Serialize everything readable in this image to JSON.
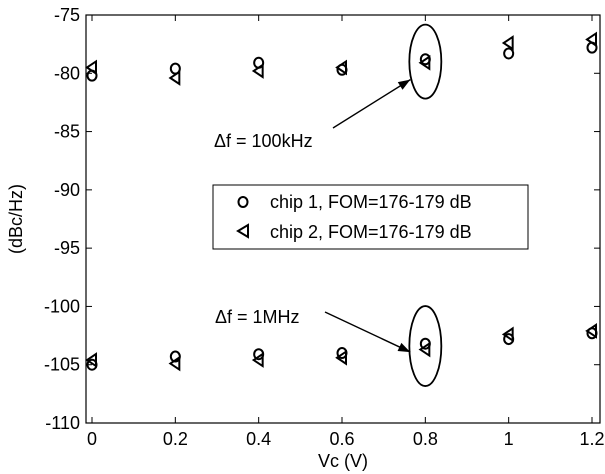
{
  "chart_data": {
    "type": "scatter",
    "xlabel": "Vc (V)",
    "ylabel": "(dBc/Hz)",
    "xlim": [
      0,
      1.2
    ],
    "ylim": [
      -110,
      -75
    ],
    "x_ticks": [
      "0",
      "0.2",
      "0.4",
      "0.6",
      "0.8",
      "1",
      "1.2"
    ],
    "y_ticks": [
      "-75",
      "-80",
      "-85",
      "-90",
      "-95",
      "-100",
      "-105",
      "-110"
    ],
    "grid": false,
    "legend_position": "center-right",
    "series": [
      {
        "name": "chip 1, FOM=176-179 dB",
        "marker": "circle",
        "groups": [
          {
            "offset": "100kHz",
            "points": [
              [
                0,
                -80.2
              ],
              [
                0.2,
                -79.6
              ],
              [
                0.4,
                -79.1
              ],
              [
                0.6,
                -79.7
              ],
              [
                0.8,
                -78.8
              ],
              [
                1.0,
                -78.3
              ],
              [
                1.2,
                -77.8
              ]
            ]
          },
          {
            "offset": "1MHz",
            "points": [
              [
                0,
                -105.0
              ],
              [
                0.2,
                -104.3
              ],
              [
                0.4,
                -104.1
              ],
              [
                0.6,
                -104.0
              ],
              [
                0.8,
                -103.2
              ],
              [
                1.0,
                -102.8
              ],
              [
                1.2,
                -102.3
              ]
            ]
          }
        ]
      },
      {
        "name": "chip 2, FOM=176-179 dB",
        "marker": "triangle-left",
        "groups": [
          {
            "offset": "100kHz",
            "points": [
              [
                0,
                -79.5
              ],
              [
                0.2,
                -80.4
              ],
              [
                0.4,
                -79.8
              ],
              [
                0.6,
                -79.5
              ],
              [
                0.8,
                -79.1
              ],
              [
                1.0,
                -77.4
              ],
              [
                1.2,
                -77.1
              ]
            ]
          },
          {
            "offset": "1MHz",
            "points": [
              [
                0,
                -104.6
              ],
              [
                0.2,
                -104.9
              ],
              [
                0.4,
                -104.6
              ],
              [
                0.6,
                -104.4
              ],
              [
                0.8,
                -103.7
              ],
              [
                1.0,
                -102.4
              ],
              [
                1.2,
                -102.1
              ]
            ]
          }
        ]
      }
    ],
    "annotations": [
      {
        "text": "Δf = 100kHz",
        "ellipse_center": [
          0.8,
          -79.0
        ]
      },
      {
        "text": "Δf = 1MHz",
        "ellipse_center": [
          0.8,
          -103.4
        ]
      }
    ],
    "legend": [
      {
        "text": "chip 1, FOM=176-179 dB",
        "marker": "circle"
      },
      {
        "text": "chip 2, FOM=176-179 dB",
        "marker": "triangle-left"
      }
    ]
  }
}
